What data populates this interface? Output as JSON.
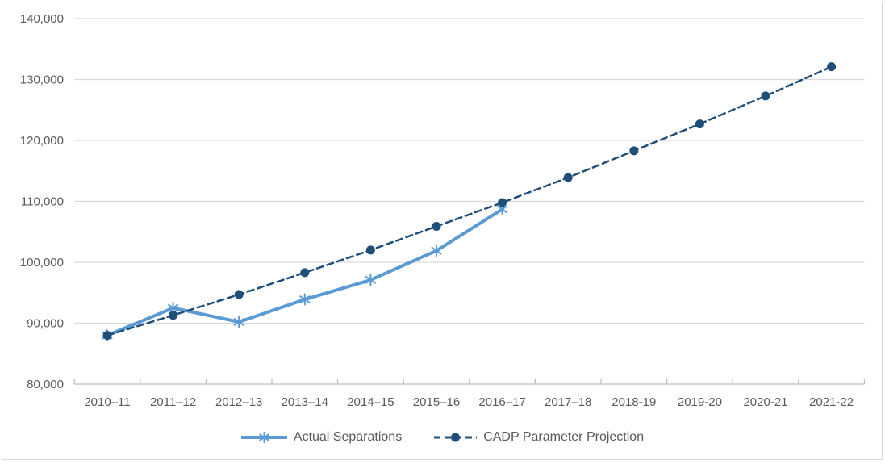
{
  "chart_data": {
    "type": "line",
    "categories": [
      "2010–11",
      "2011–12",
      "2012–13",
      "2013–14",
      "2014–15",
      "2015–16",
      "2016–17",
      "2017–18",
      "2018-19",
      "2019-20",
      "2020-21",
      "2021-22"
    ],
    "series": [
      {
        "name": "Actual Separations",
        "color": "#5B9BD5",
        "marker": "star",
        "line_style": "solid",
        "values": [
          88000,
          92500,
          90200,
          93900,
          97100,
          101900,
          108700
        ]
      },
      {
        "name": "CADP Parameter Projection",
        "color": "#1F4E79",
        "marker": "circle",
        "line_style": "dashed",
        "values": [
          88000,
          91300,
          94700,
          98300,
          102000,
          105900,
          109800,
          113900,
          118300,
          122700,
          127300,
          132100
        ]
      }
    ],
    "title": "",
    "xlabel": "",
    "ylabel": "",
    "ylim": [
      80000,
      140000
    ],
    "ytick_step": 10000,
    "ytick_labels": [
      "80,000",
      "90,000",
      "100,000",
      "110,000",
      "120,000",
      "130,000",
      "140,000"
    ],
    "grid": true,
    "legend_position": "bottom"
  },
  "colors": {
    "gridline": "#D9D9D9",
    "axis_line": "#BFBFBF",
    "tick": "#BFBFBF",
    "label_text": "#595959",
    "frame_border": "#D9D9D9",
    "background": "#FFFFFF"
  }
}
